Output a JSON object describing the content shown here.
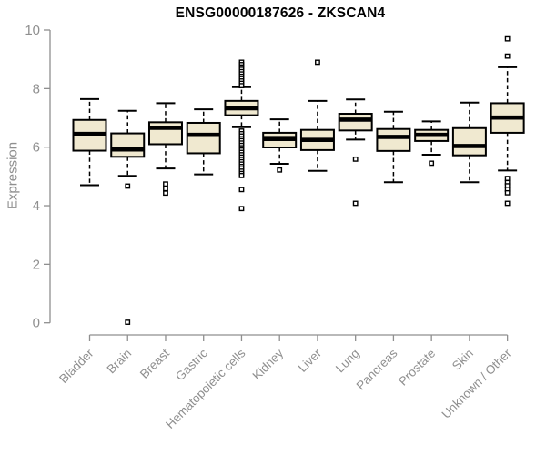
{
  "chart_data": {
    "type": "boxplot",
    "title": "ENSG00000187626 - ZKSCAN4",
    "ylabel": "Expression",
    "xlabel": "",
    "ylim": [
      0,
      10
    ],
    "yticks": [
      0,
      2,
      4,
      6,
      8,
      10
    ],
    "grid": false,
    "legend": "none",
    "categories": [
      "Bladder",
      "Brain",
      "Breast",
      "Gastric",
      "Hematopoietic cells",
      "Kidney",
      "Liver",
      "Lung",
      "Pancreas",
      "Prostate",
      "Skin",
      "Unknown / Other"
    ],
    "series": [
      {
        "name": "Bladder",
        "whislo": 4.7,
        "q1": 5.88,
        "med": 6.45,
        "q3": 6.93,
        "whishi": 7.64,
        "outliers": []
      },
      {
        "name": "Brain",
        "whislo": 5.02,
        "q1": 5.67,
        "med": 5.92,
        "q3": 6.47,
        "whishi": 7.24,
        "outliers": [
          4.67,
          0.02
        ]
      },
      {
        "name": "Breast",
        "whislo": 5.27,
        "q1": 6.1,
        "med": 6.66,
        "q3": 6.85,
        "whishi": 7.5,
        "outliers": [
          4.74,
          4.58,
          4.43
        ]
      },
      {
        "name": "Gastric",
        "whislo": 5.07,
        "q1": 5.79,
        "med": 6.42,
        "q3": 6.83,
        "whishi": 7.29,
        "outliers": []
      },
      {
        "name": "Hematopoietic cells",
        "whislo": 6.68,
        "q1": 7.09,
        "med": 7.33,
        "q3": 7.58,
        "whishi": 8.05,
        "outliers": [
          8.9,
          8.82,
          8.74,
          8.66,
          8.58,
          8.5,
          8.42,
          8.34,
          8.26,
          8.18,
          8.1,
          6.55,
          6.46,
          6.38,
          6.3,
          6.22,
          6.14,
          6.06,
          5.98,
          5.9,
          5.82,
          5.74,
          5.66,
          5.58,
          5.5,
          5.42,
          5.34,
          5.26,
          5.18,
          5.1,
          5.03,
          4.55,
          3.9
        ]
      },
      {
        "name": "Kidney",
        "whislo": 5.43,
        "q1": 5.99,
        "med": 6.28,
        "q3": 6.49,
        "whishi": 6.95,
        "outliers": [
          5.22
        ]
      },
      {
        "name": "Liver",
        "whislo": 5.19,
        "q1": 5.9,
        "med": 6.25,
        "q3": 6.59,
        "whishi": 7.58,
        "outliers": [
          8.9
        ]
      },
      {
        "name": "Lung",
        "whislo": 6.26,
        "q1": 6.57,
        "med": 6.94,
        "q3": 7.14,
        "whishi": 7.63,
        "outliers": [
          5.59,
          4.08
        ]
      },
      {
        "name": "Pancreas",
        "whislo": 4.8,
        "q1": 5.87,
        "med": 6.35,
        "q3": 6.62,
        "whishi": 7.21,
        "outliers": []
      },
      {
        "name": "Prostate",
        "whislo": 5.74,
        "q1": 6.21,
        "med": 6.42,
        "q3": 6.59,
        "whishi": 6.88,
        "outliers": [
          5.45
        ]
      },
      {
        "name": "Skin",
        "whislo": 4.8,
        "q1": 5.72,
        "med": 6.04,
        "q3": 6.65,
        "whishi": 7.52,
        "outliers": []
      },
      {
        "name": "Unknown / Other",
        "whislo": 5.2,
        "q1": 6.49,
        "med": 7.01,
        "q3": 7.5,
        "whishi": 8.73,
        "outliers": [
          9.7,
          9.11,
          4.93,
          4.79,
          4.68,
          4.56,
          4.44,
          4.08
        ]
      }
    ],
    "colors": {
      "box_fill": "#f0e9d0",
      "box_stroke": "#000000",
      "median": "#000000",
      "whisker": "#000000",
      "outlier_stroke": "#000000",
      "outlier_fill": "#ffffff",
      "axis": "#8f8f8f",
      "title": "#000000",
      "background": "#ffffff"
    }
  }
}
